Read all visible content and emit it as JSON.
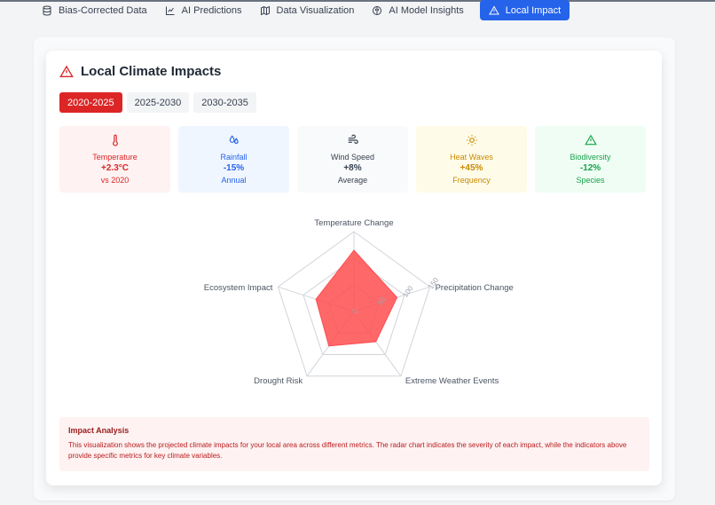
{
  "nav": {
    "tabs": [
      {
        "label": "Bias-Corrected Data",
        "icon": "database-icon"
      },
      {
        "label": "AI Predictions",
        "icon": "line-chart-icon"
      },
      {
        "label": "Data Visualization",
        "icon": "map-icon"
      },
      {
        "label": "AI Model Insights",
        "icon": "brain-icon"
      },
      {
        "label": "Local Impact",
        "icon": "alert-triangle-icon",
        "active": true
      }
    ]
  },
  "section": {
    "title": "Local Climate Impacts",
    "icon": "alert-triangle-icon",
    "icon_color": "#dc2626"
  },
  "periods": [
    {
      "label": "2020-2025",
      "active": true
    },
    {
      "label": "2025-2030"
    },
    {
      "label": "2030-2035"
    }
  ],
  "metrics": [
    {
      "label": "Temperature",
      "value": "+2.3°C",
      "sub": "vs 2020",
      "icon": "thermometer-icon",
      "bg": "#fef2f2",
      "color": "#dc2626"
    },
    {
      "label": "Rainfall",
      "value": "-15%",
      "sub": "Annual",
      "icon": "droplets-icon",
      "bg": "#eff6ff",
      "color": "#2563eb"
    },
    {
      "label": "Wind Speed",
      "value": "+8%",
      "sub": "Average",
      "icon": "wind-icon",
      "bg": "#f9fafb",
      "color": "#374151"
    },
    {
      "label": "Heat Waves",
      "value": "+45%",
      "sub": "Frequency",
      "icon": "sun-icon",
      "bg": "#fefce8",
      "color": "#ca8a04"
    },
    {
      "label": "Biodiversity",
      "value": "-12%",
      "sub": "Species",
      "icon": "alert-triangle-icon",
      "bg": "#f0fdf4",
      "color": "#16a34a"
    }
  ],
  "chart_data": {
    "type": "radar",
    "axes": [
      "Temperature Change",
      "Precipitation Change",
      "Extreme Weather Events",
      "Drought Risk",
      "Ecosystem Impact"
    ],
    "radial_ticks": [
      "0",
      "50",
      "100",
      "150"
    ],
    "radial_max": 150,
    "values": [
      115,
      85,
      70,
      80,
      75
    ],
    "fill_color": "#ff4d4f"
  },
  "analysis": {
    "title": "Impact Analysis",
    "text": "This visualization shows the projected climate impacts for your local area across different metrics. The radar chart indicates the severity of each impact, while the indicators above provide specific metrics for key climate variables."
  }
}
